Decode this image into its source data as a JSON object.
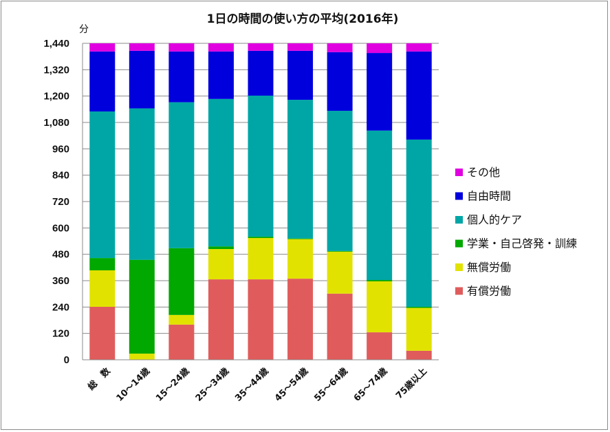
{
  "chart_data": {
    "type": "bar",
    "stacked": true,
    "title": "1日の時間の使い方の平均(2016年)",
    "ylabel": "分",
    "xlabel": "",
    "ylim": [
      0,
      1440
    ],
    "yticks": [
      0,
      120,
      240,
      360,
      480,
      600,
      720,
      840,
      960,
      1080,
      1200,
      1320,
      1440
    ],
    "ytick_labels": [
      "0",
      "120",
      "240",
      "360",
      "480",
      "600",
      "720",
      "840",
      "960",
      "1,080",
      "1,200",
      "1,320",
      "1,440"
    ],
    "grid": true,
    "legend_position": "right",
    "categories": [
      "総　数",
      "10～14歳",
      "15～24歳",
      "25～34歳",
      "35～44歳",
      "45～54歳",
      "55～64歳",
      "65～74歳",
      "75歳以上"
    ],
    "series": [
      {
        "name": "有償労働",
        "color": "#E05C5C",
        "values": [
          241,
          0,
          160,
          366,
          366,
          369,
          301,
          125,
          41
        ]
      },
      {
        "name": "無償労働",
        "color": "#E2E200",
        "values": [
          166,
          28,
          44,
          138,
          188,
          180,
          191,
          232,
          195
        ]
      },
      {
        "name": "学業・自己啓発・訓練",
        "color": "#00A800",
        "values": [
          56,
          427,
          304,
          12,
          6,
          3,
          3,
          6,
          5
        ]
      },
      {
        "name": "個人的ケア",
        "color": "#00A6A6",
        "values": [
          667,
          689,
          664,
          671,
          642,
          631,
          638,
          680,
          761
        ]
      },
      {
        "name": "自由時間",
        "color": "#0000DD",
        "values": [
          273,
          262,
          231,
          216,
          204,
          223,
          267,
          353,
          401
        ]
      },
      {
        "name": "その他",
        "color": "#E000E0",
        "values": [
          37,
          34,
          37,
          37,
          34,
          34,
          40,
          44,
          37
        ]
      }
    ],
    "legend_order": [
      "その他",
      "自由時間",
      "個人的ケア",
      "学業・自己啓発・訓練",
      "無償労働",
      "有償労働"
    ]
  }
}
